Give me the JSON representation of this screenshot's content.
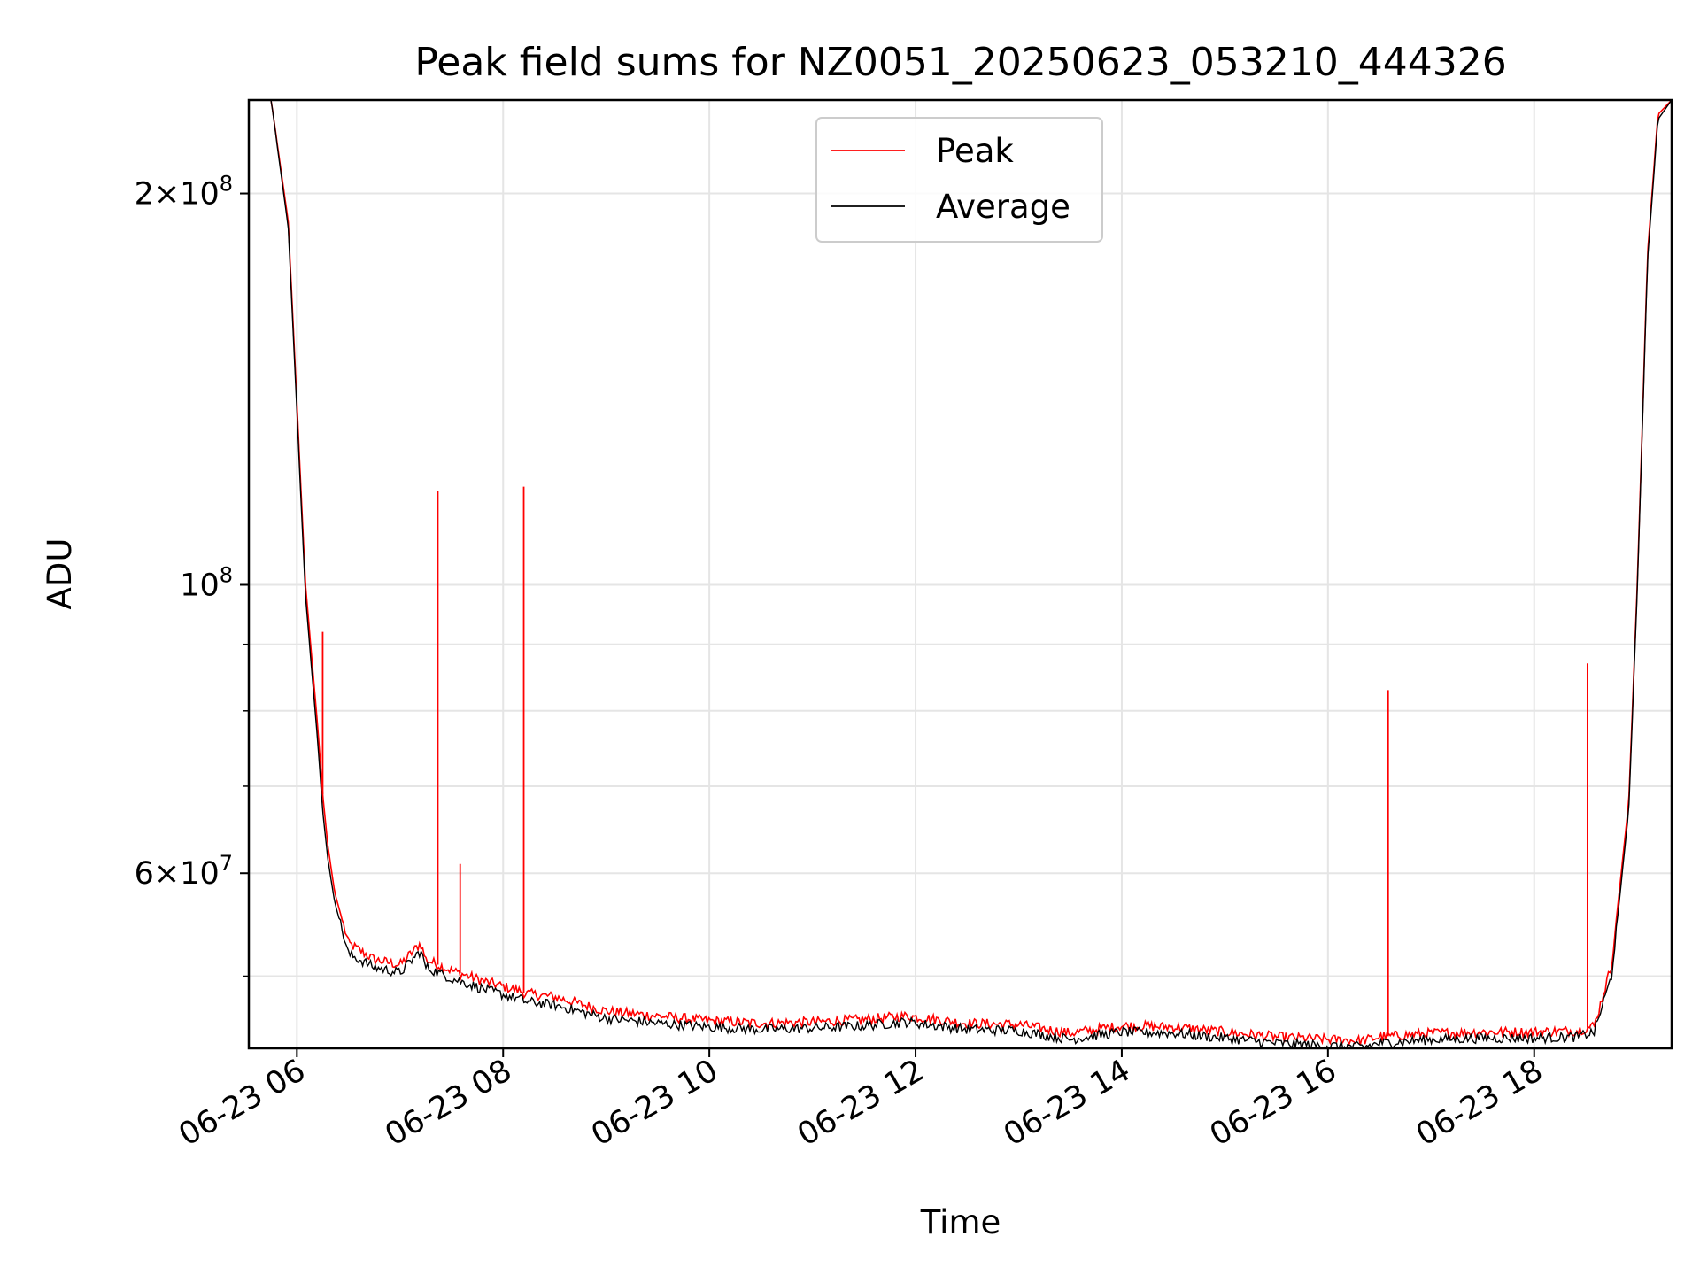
{
  "chart_data": {
    "type": "line",
    "title": "Peak field sums for NZ0051_20250623_053210_444326",
    "xlabel": "Time",
    "ylabel": "ADU",
    "yscale": "log",
    "ylim": [
      44000000,
      236000000
    ],
    "xlim": [
      "2025-06-23 05:32",
      "2025-06-23 19:20"
    ],
    "grid": true,
    "legend_position": "upper center",
    "x_ticks": [
      "06-23 06",
      "06-23 08",
      "06-23 10",
      "06-23 12",
      "06-23 14",
      "06-23 16",
      "06-23 18"
    ],
    "y_ticks": [
      {
        "value": 200000000,
        "mantissa": "2",
        "exponent": "8"
      },
      {
        "value": 100000000,
        "mantissa": "",
        "exponent": "8"
      },
      {
        "value": 60000000,
        "mantissa": "6",
        "exponent": "7"
      }
    ],
    "series": [
      {
        "name": "Peak",
        "color": "#ff0000",
        "x": [
          "2025-06-23 05:32",
          "2025-06-23 05:45",
          "2025-06-23 05:55",
          "2025-06-23 06:05",
          "2025-06-23 06:12",
          "2025-06-23 06:15",
          "2025-06-23 06:18",
          "2025-06-23 06:22",
          "2025-06-23 06:30",
          "2025-06-23 06:45",
          "2025-06-23 07:00",
          "2025-06-23 07:12",
          "2025-06-23 07:15",
          "2025-06-23 07:30",
          "2025-06-23 07:50",
          "2025-06-23 08:10",
          "2025-06-23 08:13",
          "2025-06-23 08:30",
          "2025-06-23 09:00",
          "2025-06-23 09:30",
          "2025-06-23 10:00",
          "2025-06-23 10:30",
          "2025-06-23 11:00",
          "2025-06-23 11:30",
          "2025-06-23 11:55",
          "2025-06-23 12:30",
          "2025-06-23 13:00",
          "2025-06-23 13:30",
          "2025-06-23 14:00",
          "2025-06-23 14:30",
          "2025-06-23 15:00",
          "2025-06-23 15:30",
          "2025-06-23 16:00",
          "2025-06-23 16:20",
          "2025-06-23 16:30",
          "2025-06-23 17:00",
          "2025-06-23 17:30",
          "2025-06-23 18:00",
          "2025-06-23 18:25",
          "2025-06-23 18:35",
          "2025-06-23 18:45",
          "2025-06-23 18:55",
          "2025-06-23 19:00",
          "2025-06-23 19:06",
          "2025-06-23 19:12",
          "2025-06-23 19:20"
        ],
        "values": [
          236000000,
          236000000,
          190000000,
          100000000,
          78000000,
          69000000,
          63000000,
          58000000,
          53000000,
          51500000,
          51000000,
          53000000,
          51500000,
          50500000,
          49500000,
          48700000,
          48500000,
          48200000,
          47000000,
          46600000,
          46200000,
          46000000,
          46100000,
          46300000,
          46600000,
          46000000,
          45900000,
          45200000,
          45800000,
          45700000,
          45300000,
          44900000,
          44700000,
          44600000,
          44900000,
          45200000,
          45300000,
          45300000,
          45400000,
          45800000,
          51000000,
          68000000,
          100000000,
          180000000,
          230000000,
          236000000
        ]
      },
      {
        "name": "Average",
        "color": "#000000",
        "x": [
          "2025-06-23 05:32",
          "2025-06-23 05:45",
          "2025-06-23 05:55",
          "2025-06-23 06:05",
          "2025-06-23 06:12",
          "2025-06-23 06:15",
          "2025-06-23 06:18",
          "2025-06-23 06:22",
          "2025-06-23 06:30",
          "2025-06-23 06:45",
          "2025-06-23 07:00",
          "2025-06-23 07:12",
          "2025-06-23 07:15",
          "2025-06-23 07:30",
          "2025-06-23 07:50",
          "2025-06-23 08:10",
          "2025-06-23 08:13",
          "2025-06-23 08:30",
          "2025-06-23 09:00",
          "2025-06-23 09:30",
          "2025-06-23 10:00",
          "2025-06-23 10:30",
          "2025-06-23 11:00",
          "2025-06-23 11:30",
          "2025-06-23 11:55",
          "2025-06-23 12:30",
          "2025-06-23 13:00",
          "2025-06-23 13:30",
          "2025-06-23 14:00",
          "2025-06-23 14:30",
          "2025-06-23 15:00",
          "2025-06-23 15:30",
          "2025-06-23 16:00",
          "2025-06-23 16:20",
          "2025-06-23 16:30",
          "2025-06-23 17:00",
          "2025-06-23 17:30",
          "2025-06-23 18:00",
          "2025-06-23 18:25",
          "2025-06-23 18:35",
          "2025-06-23 18:45",
          "2025-06-23 18:55",
          "2025-06-23 19:00",
          "2025-06-23 19:06",
          "2025-06-23 19:12",
          "2025-06-23 19:20"
        ],
        "values": [
          236000000,
          236000000,
          188000000,
          98000000,
          76000000,
          67000000,
          61500000,
          57000000,
          52000000,
          50800000,
          50300000,
          52300000,
          50800000,
          49800000,
          48800000,
          48000000,
          47800000,
          47500000,
          46400000,
          46000000,
          45700000,
          45500000,
          45600000,
          45800000,
          46100000,
          45500000,
          45400000,
          44700000,
          45300000,
          45200000,
          44800000,
          44400000,
          44200000,
          44100000,
          44400000,
          44700000,
          44800000,
          44800000,
          44900000,
          45300000,
          50000000,
          67000000,
          99000000,
          178000000,
          228000000,
          236000000
        ]
      }
    ],
    "spikes": [
      {
        "time": "2025-06-23 06:15",
        "value": 92000000
      },
      {
        "time": "2025-06-23 07:22",
        "value": 118000000
      },
      {
        "time": "2025-06-23 07:35",
        "value": 61000000
      },
      {
        "time": "2025-06-23 08:12",
        "value": 119000000
      },
      {
        "time": "2025-06-23 16:35",
        "value": 83000000
      },
      {
        "time": "2025-06-23 18:31",
        "value": 87000000
      }
    ]
  }
}
